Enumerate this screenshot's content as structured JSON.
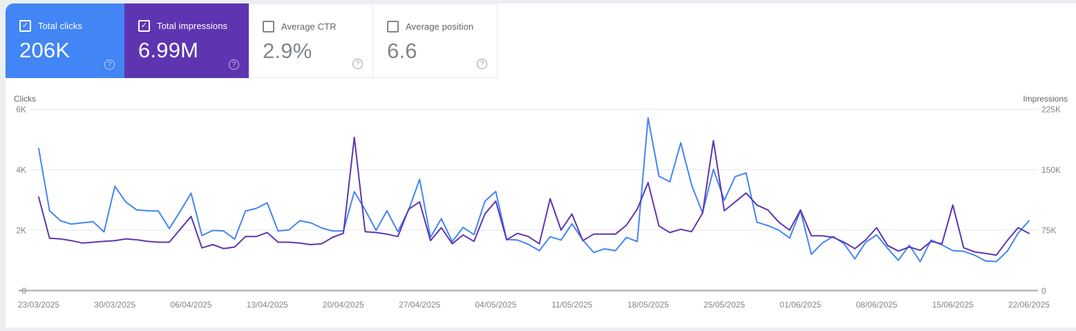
{
  "metric_cards": [
    {
      "label": "Total clicks",
      "value": "206K",
      "checked": true,
      "style": "colored",
      "color": "#4285f4",
      "help": "?"
    },
    {
      "label": "Total impressions",
      "value": "6.99M",
      "checked": true,
      "style": "colored",
      "color": "#5e35b1",
      "help": "?"
    },
    {
      "label": "Average CTR",
      "value": "2.9%",
      "checked": false,
      "style": "plain",
      "color": "#ffffff",
      "help": "?"
    },
    {
      "label": "Average position",
      "value": "6.6",
      "checked": false,
      "style": "plain",
      "color": "#ffffff",
      "help": "?"
    }
  ],
  "chart_data": {
    "type": "line",
    "title": "",
    "left_axis": {
      "label": "Clicks",
      "range": [
        0,
        6000
      ],
      "ticks": [
        0,
        2000,
        4000,
        6000
      ],
      "tick_labels": [
        "0",
        "2K",
        "4K",
        "6K"
      ]
    },
    "right_axis": {
      "label": "Impressions",
      "range": [
        0,
        225000
      ],
      "ticks": [
        0,
        75000,
        150000,
        225000
      ],
      "tick_labels": [
        "0",
        "75K",
        "150K",
        "225K"
      ]
    },
    "grid": "horizontal",
    "legend_position": "none",
    "x_start": "23/03/2025",
    "x_end": "22/06/2025",
    "x_tick_every": 7,
    "x_tick_labels": [
      "23/03/2025",
      "30/03/2025",
      "06/04/2025",
      "13/04/2025",
      "20/04/2025",
      "27/04/2025",
      "04/05/2025",
      "11/05/2025",
      "18/05/2025",
      "25/05/2025",
      "01/06/2025",
      "08/06/2025",
      "15/06/2025",
      "22/06/2025"
    ],
    "series": [
      {
        "name": "Total clicks",
        "axis": "left",
        "color": "#4285f4",
        "values": [
          4700,
          2640,
          2310,
          2200,
          2240,
          2280,
          1940,
          3450,
          2930,
          2670,
          2640,
          2630,
          2050,
          2620,
          3220,
          1820,
          1990,
          1970,
          1700,
          2630,
          2720,
          2900,
          1970,
          2010,
          2310,
          2240,
          2070,
          1970,
          1970,
          3270,
          2670,
          1990,
          2640,
          1950,
          2670,
          3680,
          1760,
          2380,
          1620,
          2090,
          1850,
          2950,
          3280,
          1690,
          1670,
          1530,
          1320,
          1780,
          1670,
          2210,
          1670,
          1260,
          1380,
          1320,
          1760,
          1620,
          5710,
          3780,
          3600,
          4890,
          3490,
          2570,
          4010,
          2990,
          3770,
          3890,
          2260,
          2150,
          2000,
          1740,
          2640,
          1200,
          1570,
          1790,
          1550,
          1050,
          1600,
          1840,
          1400,
          1000,
          1500,
          960,
          1670,
          1510,
          1320,
          1300,
          1170,
          980,
          960,
          1300,
          1900,
          2310
        ]
      },
      {
        "name": "Total impressions",
        "axis": "right",
        "color": "#5e35b1",
        "values": [
          116000,
          65000,
          64000,
          62000,
          59000,
          60000,
          61000,
          62000,
          64000,
          63000,
          61000,
          60000,
          60000,
          76000,
          92000,
          53000,
          57000,
          52000,
          54000,
          67000,
          67000,
          72000,
          60000,
          60000,
          59000,
          57000,
          58000,
          66000,
          71000,
          190000,
          73000,
          72000,
          70000,
          67000,
          101000,
          110000,
          62000,
          78000,
          58000,
          69000,
          61000,
          95000,
          111000,
          63000,
          71000,
          67000,
          58000,
          114000,
          75000,
          95000,
          62000,
          70000,
          70000,
          70000,
          81000,
          101000,
          134000,
          80000,
          72000,
          76000,
          73000,
          96000,
          186000,
          99000,
          110000,
          121000,
          106000,
          100000,
          85000,
          75000,
          100000,
          68000,
          68000,
          66000,
          60000,
          52000,
          63000,
          78000,
          56000,
          49000,
          54000,
          50000,
          61000,
          58000,
          106000,
          53000,
          48000,
          46000,
          44000,
          62000,
          78000,
          71000
        ]
      }
    ]
  }
}
